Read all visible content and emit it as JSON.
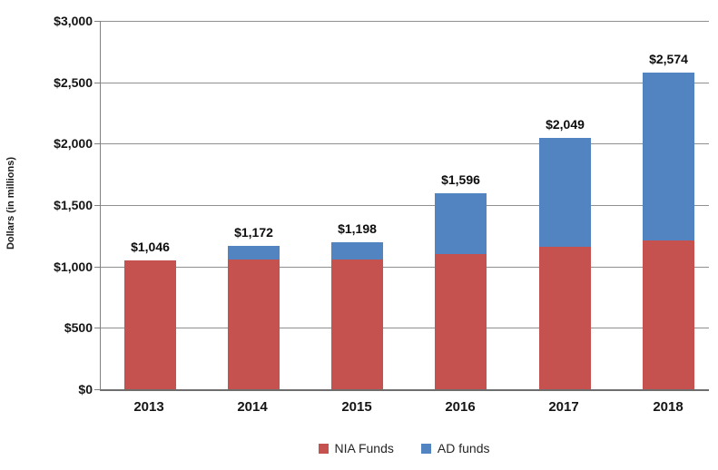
{
  "chart_data": {
    "type": "bar",
    "stacked": true,
    "categories": [
      "2013",
      "2014",
      "2015",
      "2016",
      "2017",
      "2018"
    ],
    "series": [
      {
        "name": "NIA Funds",
        "color": "#C6524F",
        "values": [
          1046,
          1060,
          1060,
          1100,
          1160,
          1210
        ]
      },
      {
        "name": "AD funds",
        "color": "#5384C2",
        "values": [
          0,
          112,
          138,
          496,
          889,
          1364
        ]
      }
    ],
    "totals": [
      1046,
      1172,
      1198,
      1596,
      2049,
      2574
    ],
    "total_labels": [
      "$1,046",
      "$1,172",
      "$1,198",
      "$1,596",
      "$2,049",
      "$2,574"
    ],
    "title": "",
    "xlabel": "",
    "ylabel": "Dollars (in millions)",
    "ylim": [
      0,
      3000
    ],
    "ytick_step": 500,
    "ytick_labels": [
      "$3,000",
      "$2,500",
      "$2,000",
      "$1,500",
      "$1,000",
      "$500",
      "$0"
    ],
    "grid": true,
    "legend_position": "bottom"
  },
  "y_axis": {
    "title": "Dollars (in millions)"
  },
  "legend": {
    "items": [
      {
        "label": "NIA Funds",
        "color": "#C6524F"
      },
      {
        "label": "AD funds",
        "color": "#5384C2"
      }
    ]
  },
  "colors": {
    "nia_red": "#C6524F",
    "ad_blue": "#5384C2",
    "gridline": "#8f8f8f",
    "axis": "#6e6e6e",
    "text": "#151515",
    "background": "#ffffff"
  }
}
